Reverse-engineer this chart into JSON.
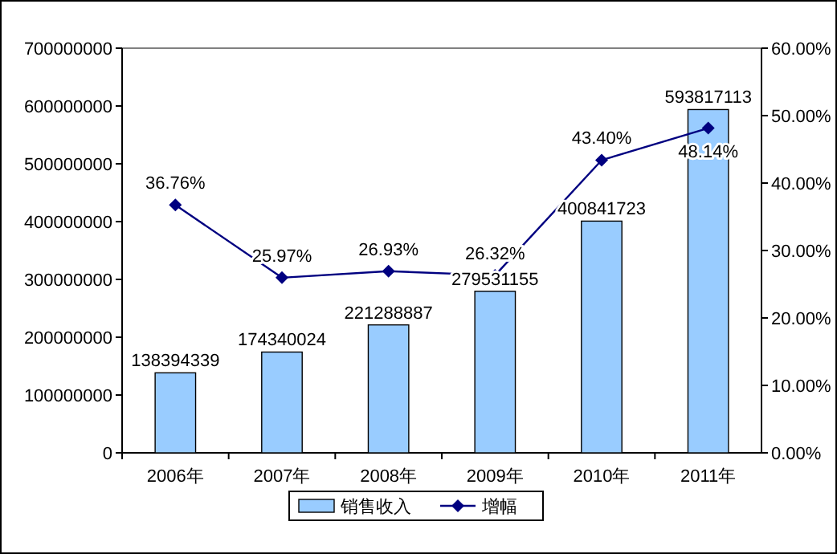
{
  "chart_data": {
    "type": "bar",
    "categories": [
      "2006年",
      "2007年",
      "2008年",
      "2009年",
      "2010年",
      "2011年"
    ],
    "series": [
      {
        "name": "销售收入",
        "color": "#99ccff",
        "values": [
          138394339,
          174340024,
          221288887,
          279531155,
          400841723,
          593817113
        ],
        "value_labels": [
          "138394339",
          "174340024",
          "221288887",
          "279531155",
          "400841723",
          "593817113"
        ]
      },
      {
        "name": "增幅",
        "type": "line",
        "axis": "y2",
        "color": "#000080",
        "marker": "diamond",
        "values": [
          36.76,
          25.97,
          26.93,
          26.32,
          43.4,
          48.14
        ],
        "value_labels": [
          "36.76%",
          "25.97%",
          "26.93%",
          "26.32%",
          "43.40%",
          "48.14%"
        ]
      }
    ],
    "ylim": [
      0,
      700000000
    ],
    "yticks": [
      0,
      100000000,
      200000000,
      300000000,
      400000000,
      500000000,
      600000000,
      700000000
    ],
    "y2lim": [
      0,
      60
    ],
    "y2ticks": [
      {
        "value": 0,
        "label": "0.00%"
      },
      {
        "value": 10,
        "label": "10.00%"
      },
      {
        "value": 20,
        "label": "20.00%"
      },
      {
        "value": 30,
        "label": "30.00%"
      },
      {
        "value": 40,
        "label": "40.00%"
      },
      {
        "value": 50,
        "label": "50.00%"
      },
      {
        "value": 60,
        "label": "60.00%"
      }
    ],
    "legend": "bottom",
    "grid": false
  }
}
